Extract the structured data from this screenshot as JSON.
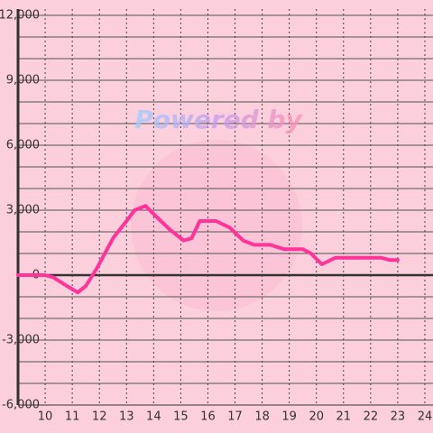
{
  "chart_data": {
    "type": "line",
    "watermark": "Powered by",
    "x": [
      9,
      10,
      10.3,
      10.8,
      11.2,
      11.5,
      11.9,
      12.5,
      13,
      13.3,
      13.7,
      14.1,
      14.6,
      15.1,
      15.4,
      15.7,
      16.3,
      16.8,
      17.3,
      17.7,
      18.3,
      18.8,
      19.5,
      19.8,
      20.2,
      20.7,
      21.3,
      22.4,
      22.7,
      23
    ],
    "series": [
      {
        "color": "#ff3399",
        "values": [
          0,
          0,
          -100,
          -500,
          -800,
          -500,
          300,
          1700,
          2500,
          3000,
          3200,
          2700,
          2100,
          1600,
          1700,
          2500,
          2500,
          2200,
          1600,
          1400,
          1400,
          1200,
          1200,
          1000,
          500,
          800,
          800,
          800,
          700,
          700
        ]
      }
    ],
    "xlim": [
      9,
      24.3
    ],
    "xticks": [
      10,
      11,
      12,
      13,
      14,
      15,
      16,
      17,
      18,
      19,
      20,
      21,
      22,
      23,
      24
    ],
    "ylim": [
      -6000,
      12000
    ],
    "yticks": [
      {
        "value": -6000,
        "label": "-6,000"
      },
      {
        "value": -3000,
        "label": "-3,000"
      },
      0,
      {
        "value": 3000,
        "label": "3,000"
      },
      {
        "value": 6000,
        "label": "6,000"
      },
      {
        "value": 9000,
        "label": "9,000"
      },
      {
        "value": 12000,
        "label": "12,000"
      }
    ],
    "y_minor_ticks": [
      -5000,
      -4000,
      -2000,
      -1000,
      1000,
      2000,
      4000,
      5000,
      7000,
      8000,
      10000,
      11000
    ],
    "grid": true
  }
}
